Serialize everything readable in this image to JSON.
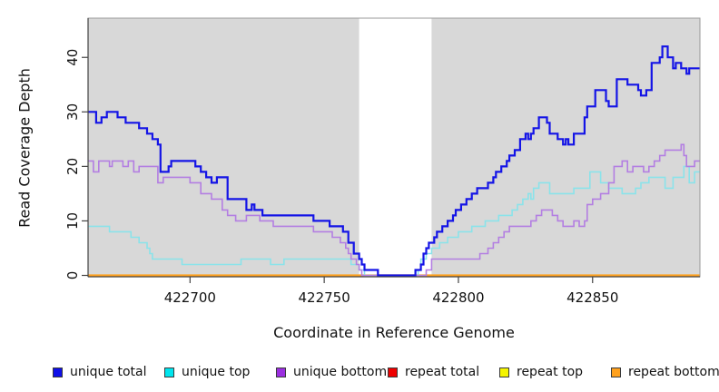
{
  "chart_data": {
    "type": "line",
    "line_style": "step-after",
    "title": "",
    "xlabel": "Coordinate in Reference Genome",
    "ylabel": "Read Coverage Depth",
    "x_ticks": [
      422700,
      422750,
      422800,
      422850
    ],
    "y_ticks": [
      0,
      10,
      20,
      30,
      40
    ],
    "xlim": [
      422662,
      422890
    ],
    "ylim": [
      0,
      47.2
    ],
    "grid": false,
    "legend_position": "bottom",
    "panel_background": "#d8d8d8",
    "axis_color": "#444444",
    "panel_border_color": "#9a9a9a",
    "highlight_band": {
      "x_start": 422763,
      "x_end": 422790,
      "color": "#ffffff"
    },
    "series": [
      {
        "name": "unique total",
        "color": "#1414e6",
        "legend_color": "#0f0fe8",
        "line_width": 2.2,
        "points": [
          [
            422662,
            30
          ],
          [
            422665,
            28
          ],
          [
            422667,
            29
          ],
          [
            422669,
            30
          ],
          [
            422673,
            29
          ],
          [
            422676,
            28
          ],
          [
            422681,
            27
          ],
          [
            422684,
            26
          ],
          [
            422686,
            25
          ],
          [
            422688,
            24
          ],
          [
            422689,
            19
          ],
          [
            422692,
            20
          ],
          [
            422693,
            21
          ],
          [
            422702,
            20
          ],
          [
            422704,
            19
          ],
          [
            422706,
            18
          ],
          [
            422708,
            17
          ],
          [
            422710,
            18
          ],
          [
            422714,
            14
          ],
          [
            422721,
            12
          ],
          [
            422723,
            13
          ],
          [
            422724,
            12
          ],
          [
            422727,
            11
          ],
          [
            422746,
            10
          ],
          [
            422752,
            9
          ],
          [
            422757,
            8
          ],
          [
            422759,
            6
          ],
          [
            422761,
            4
          ],
          [
            422763,
            3
          ],
          [
            422764,
            2
          ],
          [
            422765,
            1
          ],
          [
            422770,
            0
          ],
          [
            422784,
            1
          ],
          [
            422786,
            2
          ],
          [
            422787,
            4
          ],
          [
            422788,
            5
          ],
          [
            422789,
            6
          ],
          [
            422791,
            7
          ],
          [
            422792,
            8
          ],
          [
            422794,
            9
          ],
          [
            422796,
            10
          ],
          [
            422798,
            11
          ],
          [
            422799,
            12
          ],
          [
            422801,
            13
          ],
          [
            422803,
            14
          ],
          [
            422805,
            15
          ],
          [
            422807,
            16
          ],
          [
            422811,
            17
          ],
          [
            422813,
            18
          ],
          [
            422814,
            19
          ],
          [
            422816,
            20
          ],
          [
            422818,
            21
          ],
          [
            422819,
            22
          ],
          [
            422821,
            23
          ],
          [
            422823,
            25
          ],
          [
            422825,
            26
          ],
          [
            422826,
            25
          ],
          [
            422827,
            26
          ],
          [
            422828,
            27
          ],
          [
            422830,
            29
          ],
          [
            422833,
            28
          ],
          [
            422834,
            26
          ],
          [
            422837,
            25
          ],
          [
            422839,
            24
          ],
          [
            422840,
            25
          ],
          [
            422841,
            24
          ],
          [
            422843,
            26
          ],
          [
            422847,
            29
          ],
          [
            422848,
            31
          ],
          [
            422851,
            34
          ],
          [
            422855,
            32
          ],
          [
            422856,
            31
          ],
          [
            422859,
            36
          ],
          [
            422863,
            35
          ],
          [
            422867,
            34
          ],
          [
            422868,
            33
          ],
          [
            422870,
            34
          ],
          [
            422872,
            39
          ],
          [
            422875,
            40
          ],
          [
            422876,
            42
          ],
          [
            422878,
            40
          ],
          [
            422880,
            38
          ],
          [
            422881,
            39
          ],
          [
            422883,
            38
          ],
          [
            422885,
            37
          ],
          [
            422886,
            38
          ]
        ]
      },
      {
        "name": "unique top",
        "color": "#8ae3ea",
        "legend_color": "#00e5ee",
        "line_width": 1.6,
        "points": [
          [
            422662,
            9
          ],
          [
            422670,
            8
          ],
          [
            422678,
            7
          ],
          [
            422681,
            6
          ],
          [
            422684,
            5
          ],
          [
            422685,
            4
          ],
          [
            422686,
            3
          ],
          [
            422697,
            2
          ],
          [
            422719,
            3
          ],
          [
            422730,
            2
          ],
          [
            422735,
            3
          ],
          [
            422760,
            2
          ],
          [
            422763,
            1
          ],
          [
            422765,
            0
          ],
          [
            422785,
            1
          ],
          [
            422786,
            3
          ],
          [
            422788,
            4
          ],
          [
            422790,
            5
          ],
          [
            422793,
            6
          ],
          [
            422796,
            7
          ],
          [
            422800,
            8
          ],
          [
            422805,
            9
          ],
          [
            422810,
            10
          ],
          [
            422815,
            11
          ],
          [
            422820,
            12
          ],
          [
            422822,
            13
          ],
          [
            422824,
            14
          ],
          [
            422826,
            15
          ],
          [
            422827,
            14
          ],
          [
            422828,
            16
          ],
          [
            422830,
            17
          ],
          [
            422834,
            15
          ],
          [
            422843,
            16
          ],
          [
            422849,
            19
          ],
          [
            422853,
            17
          ],
          [
            422856,
            16
          ],
          [
            422861,
            15
          ],
          [
            422866,
            16
          ],
          [
            422868,
            17
          ],
          [
            422871,
            18
          ],
          [
            422877,
            16
          ],
          [
            422880,
            18
          ],
          [
            422884,
            20
          ],
          [
            422886,
            17
          ],
          [
            422888,
            19
          ]
        ]
      },
      {
        "name": "unique bottom",
        "color": "#b37ee2",
        "legend_color": "#9b2fe0",
        "line_width": 1.6,
        "points": [
          [
            422662,
            21
          ],
          [
            422664,
            19
          ],
          [
            422666,
            21
          ],
          [
            422670,
            20
          ],
          [
            422671,
            21
          ],
          [
            422675,
            20
          ],
          [
            422677,
            21
          ],
          [
            422679,
            19
          ],
          [
            422681,
            20
          ],
          [
            422688,
            17
          ],
          [
            422690,
            18
          ],
          [
            422700,
            17
          ],
          [
            422704,
            15
          ],
          [
            422708,
            14
          ],
          [
            422712,
            12
          ],
          [
            422714,
            11
          ],
          [
            422717,
            10
          ],
          [
            422721,
            11
          ],
          [
            422726,
            10
          ],
          [
            422731,
            9
          ],
          [
            422746,
            8
          ],
          [
            422753,
            7
          ],
          [
            422756,
            6
          ],
          [
            422758,
            5
          ],
          [
            422759,
            4
          ],
          [
            422760,
            3
          ],
          [
            422762,
            2
          ],
          [
            422763,
            1
          ],
          [
            422764,
            0
          ],
          [
            422788,
            1
          ],
          [
            422790,
            3
          ],
          [
            422808,
            4
          ],
          [
            422811,
            5
          ],
          [
            422813,
            6
          ],
          [
            422815,
            7
          ],
          [
            422817,
            8
          ],
          [
            422819,
            9
          ],
          [
            422827,
            10
          ],
          [
            422829,
            11
          ],
          [
            422831,
            12
          ],
          [
            422835,
            11
          ],
          [
            422837,
            10
          ],
          [
            422839,
            9
          ],
          [
            422843,
            10
          ],
          [
            422845,
            9
          ],
          [
            422847,
            10
          ],
          [
            422848,
            13
          ],
          [
            422850,
            14
          ],
          [
            422853,
            15
          ],
          [
            422856,
            17
          ],
          [
            422858,
            20
          ],
          [
            422861,
            21
          ],
          [
            422863,
            19
          ],
          [
            422865,
            20
          ],
          [
            422869,
            19
          ],
          [
            422871,
            20
          ],
          [
            422873,
            21
          ],
          [
            422875,
            22
          ],
          [
            422877,
            23
          ],
          [
            422883,
            24
          ],
          [
            422884,
            22
          ],
          [
            422885,
            20
          ],
          [
            422888,
            21
          ]
        ]
      },
      {
        "name": "repeat total",
        "color": "#e00000",
        "legend_color": "#ee0000",
        "line_width": 1.6,
        "points": [
          [
            422662,
            0
          ]
        ]
      },
      {
        "name": "repeat top",
        "color": "#f2f200",
        "legend_color": "#f5f500",
        "line_width": 1.6,
        "points": [
          [
            422662,
            0
          ]
        ]
      },
      {
        "name": "repeat bottom",
        "color": "#ffa11e",
        "legend_color": "#ffa11e",
        "line_width": 2.2,
        "points": [
          [
            422662,
            0
          ]
        ]
      }
    ]
  },
  "layout_text": {
    "xlabel": "Coordinate in Reference Genome",
    "ylabel": "Read Coverage Depth"
  }
}
